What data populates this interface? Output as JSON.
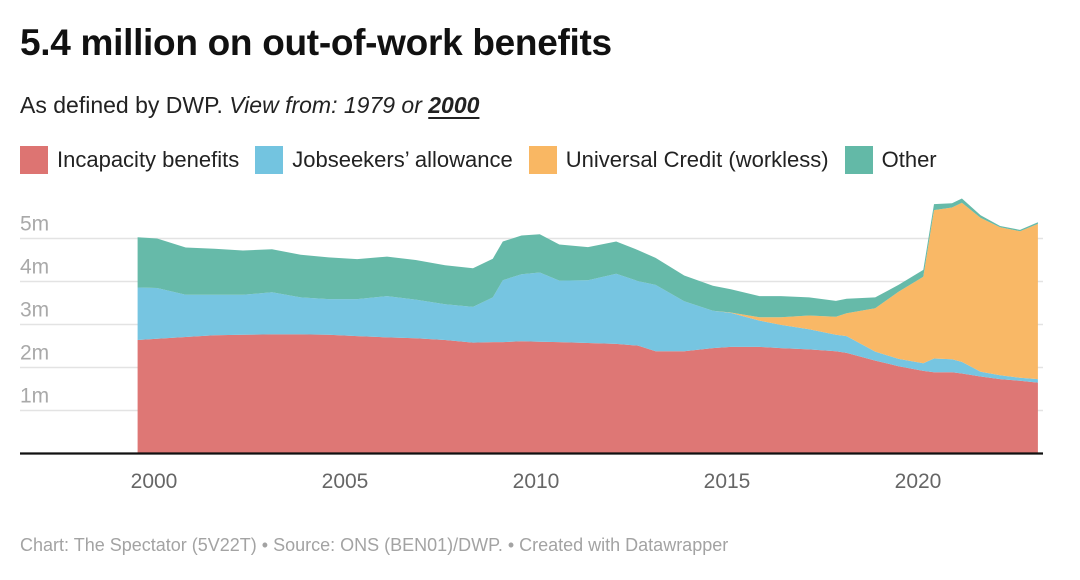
{
  "title": "5.4 million on out-of-work benefits",
  "subtitle": {
    "prefix": "As defined by DWP.",
    "view_from": "View from:",
    "option_1979": "1979",
    "or": "or",
    "option_2000": "2000"
  },
  "footer": "Chart: The Spectator (5V22T) • Source: ONS (BEN01)/DWP. • Created with Datawrapper",
  "chart_data": {
    "type": "area",
    "stacked": true,
    "title": "5.4 million on out-of-work benefits",
    "xlabel": "",
    "ylabel": "",
    "xlim": [
      1998.95,
      2023.4
    ],
    "ylim": [
      0,
      5.5
    ],
    "x_ticks": [
      2000,
      2005,
      2010,
      2015,
      2020
    ],
    "x_tick_labels": [
      "2000",
      "2005",
      "2010",
      "2015",
      "2020"
    ],
    "y_ticks": [
      1,
      2,
      3,
      4,
      5
    ],
    "y_tick_labels": [
      "1m",
      "2m",
      "3m",
      "4m",
      "5m"
    ],
    "y_unit": "millions",
    "grid": true,
    "legend_position": "top",
    "x": [
      1999.57,
      2000.08,
      2000.83,
      2001.58,
      2002.33,
      2003.09,
      2003.84,
      2004.57,
      2005.32,
      2006.1,
      2006.85,
      2007.62,
      2008.35,
      2008.87,
      2009.13,
      2009.62,
      2010.1,
      2010.61,
      2011.36,
      2012.1,
      2012.67,
      2013.13,
      2013.88,
      2014.63,
      2015.1,
      2015.85,
      2016.41,
      2017.15,
      2017.85,
      2018.13,
      2018.88,
      2019.49,
      2020.14,
      2020.42,
      2020.89,
      2021.15,
      2021.64,
      2022.15,
      2022.67,
      2023.14
    ],
    "series": [
      {
        "name": "Incapacity benefits",
        "color": "#dd7472",
        "values": [
          2.64,
          2.67,
          2.71,
          2.75,
          2.76,
          2.77,
          2.77,
          2.76,
          2.73,
          2.7,
          2.68,
          2.64,
          2.58,
          2.59,
          2.59,
          2.61,
          2.6,
          2.59,
          2.57,
          2.55,
          2.51,
          2.38,
          2.38,
          2.45,
          2.48,
          2.48,
          2.45,
          2.42,
          2.38,
          2.34,
          2.16,
          2.03,
          1.92,
          1.89,
          1.89,
          1.86,
          1.79,
          1.73,
          1.69,
          1.65
        ]
      },
      {
        "name": "Jobseekers’ allowance",
        "color": "#73c4e0",
        "values": [
          1.22,
          1.18,
          0.98,
          0.94,
          0.93,
          0.98,
          0.86,
          0.83,
          0.86,
          0.96,
          0.9,
          0.83,
          0.83,
          1.04,
          1.44,
          1.56,
          1.61,
          1.43,
          1.46,
          1.63,
          1.5,
          1.54,
          1.16,
          0.87,
          0.79,
          0.61,
          0.54,
          0.47,
          0.38,
          0.39,
          0.21,
          0.17,
          0.18,
          0.32,
          0.3,
          0.27,
          0.11,
          0.09,
          0.07,
          0.08
        ]
      },
      {
        "name": "Universal Credit (workless)",
        "color": "#f9b763",
        "values": [
          0,
          0,
          0,
          0,
          0,
          0,
          0,
          0,
          0,
          0,
          0,
          0,
          0,
          0,
          0,
          0,
          0,
          0,
          0,
          0,
          0,
          0,
          0,
          0,
          0.01,
          0.08,
          0.18,
          0.32,
          0.42,
          0.53,
          1.01,
          1.56,
          2.01,
          3.45,
          3.53,
          3.7,
          3.58,
          3.44,
          3.41,
          3.61
        ]
      },
      {
        "name": "Other",
        "color": "#63b9a7",
        "values": [
          1.17,
          1.15,
          1.1,
          1.07,
          1.03,
          1.0,
          0.99,
          0.97,
          0.93,
          0.92,
          0.92,
          0.91,
          0.9,
          0.9,
          0.9,
          0.9,
          0.89,
          0.84,
          0.77,
          0.75,
          0.72,
          0.63,
          0.6,
          0.58,
          0.54,
          0.49,
          0.49,
          0.42,
          0.37,
          0.34,
          0.25,
          0.16,
          0.16,
          0.14,
          0.1,
          0.1,
          0.06,
          0.03,
          0.03,
          0.04
        ]
      }
    ]
  }
}
